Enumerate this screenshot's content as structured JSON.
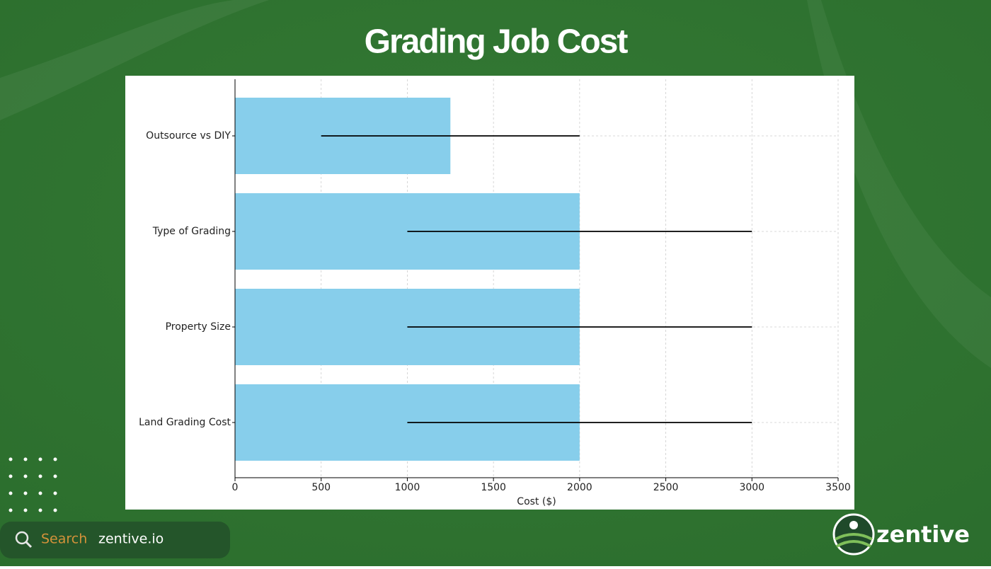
{
  "chart_data": {
    "type": "bar",
    "orientation": "horizontal",
    "title": "Grading Job Cost",
    "categories": [
      "Land Grading Cost",
      "Property Size",
      "Type of Grading",
      "Outsource vs DIY"
    ],
    "values": [
      2000,
      2000,
      2000,
      1250
    ],
    "errors": [
      1000,
      1000,
      1000,
      750
    ],
    "color": "#87ceeb",
    "error_color": "#000000",
    "x_label": "Cost ($)",
    "xlim": [
      0,
      3500
    ],
    "xticks": [
      0,
      500,
      1000,
      1500,
      2000,
      2500,
      3000,
      3500
    ],
    "grid": true
  },
  "footer": {
    "search": "Search",
    "site": "zentive.io",
    "brand": "zentive"
  }
}
